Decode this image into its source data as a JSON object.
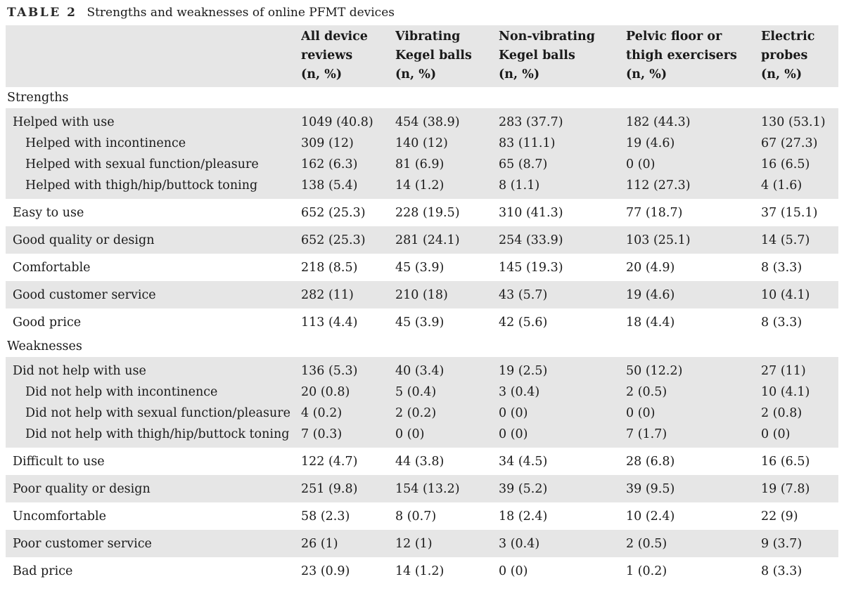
{
  "caption": {
    "label": "TABLE 2",
    "title": "Strengths and weaknesses of online PFMT devices"
  },
  "header": [
    [
      "All device",
      "reviews",
      "(n, %)"
    ],
    [
      "Vibrating",
      "Kegel balls",
      "(n, %)"
    ],
    [
      "Non-vibrating",
      "Kegel balls",
      "(n, %)"
    ],
    [
      "Pelvic floor or",
      "thigh exercisers",
      "(n, %)"
    ],
    [
      "Electric",
      "probes",
      "(n, %)"
    ]
  ],
  "sections": [
    {
      "title": "Strengths",
      "groups": [
        {
          "rows": [
            {
              "label": "Helped with use",
              "values": [
                "1049 (40.8)",
                "454 (38.9)",
                "283 (37.7)",
                "182 (44.3)",
                "130 (53.1)"
              ]
            },
            {
              "label": "Helped with incontinence",
              "sub": true,
              "values": [
                "309 (12)",
                "140 (12)",
                "83 (11.1)",
                "19 (4.6)",
                "67 (27.3)"
              ]
            },
            {
              "label": "Helped with sexual function/pleasure",
              "sub": true,
              "values": [
                "162 (6.3)",
                "81 (6.9)",
                "65 (8.7)",
                "0 (0)",
                "16 (6.5)"
              ]
            },
            {
              "label": "Helped with thigh/hip/buttock toning",
              "sub": true,
              "values": [
                "138 (5.4)",
                "14 (1.2)",
                "8 (1.1)",
                "112 (27.3)",
                "4 (1.6)"
              ]
            }
          ]
        },
        {
          "rows": [
            {
              "label": "Easy to use",
              "values": [
                "652 (25.3)",
                "228 (19.5)",
                "310 (41.3)",
                "77 (18.7)",
                "37 (15.1)"
              ]
            }
          ]
        },
        {
          "rows": [
            {
              "label": "Good quality or design",
              "values": [
                "652 (25.3)",
                "281 (24.1)",
                "254 (33.9)",
                "103 (25.1)",
                "14 (5.7)"
              ]
            }
          ]
        },
        {
          "rows": [
            {
              "label": "Comfortable",
              "values": [
                "218 (8.5)",
                "45 (3.9)",
                "145 (19.3)",
                "20 (4.9)",
                "8 (3.3)"
              ]
            }
          ]
        },
        {
          "rows": [
            {
              "label": "Good customer service",
              "values": [
                "282 (11)",
                "210 (18)",
                "43 (5.7)",
                "19 (4.6)",
                "10 (4.1)"
              ]
            }
          ]
        },
        {
          "rows": [
            {
              "label": "Good price",
              "values": [
                "113 (4.4)",
                "45 (3.9)",
                "42 (5.6)",
                "18 (4.4)",
                "8 (3.3)"
              ]
            }
          ]
        }
      ]
    },
    {
      "title": "Weaknesses",
      "groups": [
        {
          "rows": [
            {
              "label": "Did not help with use",
              "values": [
                "136 (5.3)",
                "40 (3.4)",
                "19 (2.5)",
                "50 (12.2)",
                "27 (11)"
              ]
            },
            {
              "label": "Did not help with incontinence",
              "sub": true,
              "values": [
                "20 (0.8)",
                "5 (0.4)",
                "3 (0.4)",
                "2 (0.5)",
                "10 (4.1)"
              ]
            },
            {
              "label": "Did not help with sexual function/pleasure",
              "sub": true,
              "values": [
                "4 (0.2)",
                "2 (0.2)",
                "0 (0)",
                "0 (0)",
                "2 (0.8)"
              ]
            },
            {
              "label": "Did not help with thigh/hip/buttock toning",
              "sub": true,
              "values": [
                "7 (0.3)",
                "0 (0)",
                "0 (0)",
                "7 (1.7)",
                "0 (0)"
              ]
            }
          ]
        },
        {
          "rows": [
            {
              "label": "Difficult to use",
              "values": [
                "122 (4.7)",
                "44 (3.8)",
                "34 (4.5)",
                "28 (6.8)",
                "16 (6.5)"
              ]
            }
          ]
        },
        {
          "rows": [
            {
              "label": "Poor quality or design",
              "values": [
                "251 (9.8)",
                "154 (13.2)",
                "39 (5.2)",
                "39 (9.5)",
                "19 (7.8)"
              ]
            }
          ]
        },
        {
          "rows": [
            {
              "label": "Uncomfortable",
              "values": [
                "58 (2.3)",
                "8 (0.7)",
                "18 (2.4)",
                "10 (2.4)",
                "22 (9)"
              ]
            }
          ]
        },
        {
          "rows": [
            {
              "label": "Poor customer service",
              "values": [
                "26 (1)",
                "12 (1)",
                "3 (0.4)",
                "2 (0.5)",
                "9 (3.7)"
              ]
            }
          ]
        },
        {
          "rows": [
            {
              "label": "Bad price",
              "values": [
                "23 (0.9)",
                "14 (1.2)",
                "0 (0)",
                "1 (0.2)",
                "8 (3.3)"
              ]
            }
          ]
        }
      ]
    }
  ]
}
